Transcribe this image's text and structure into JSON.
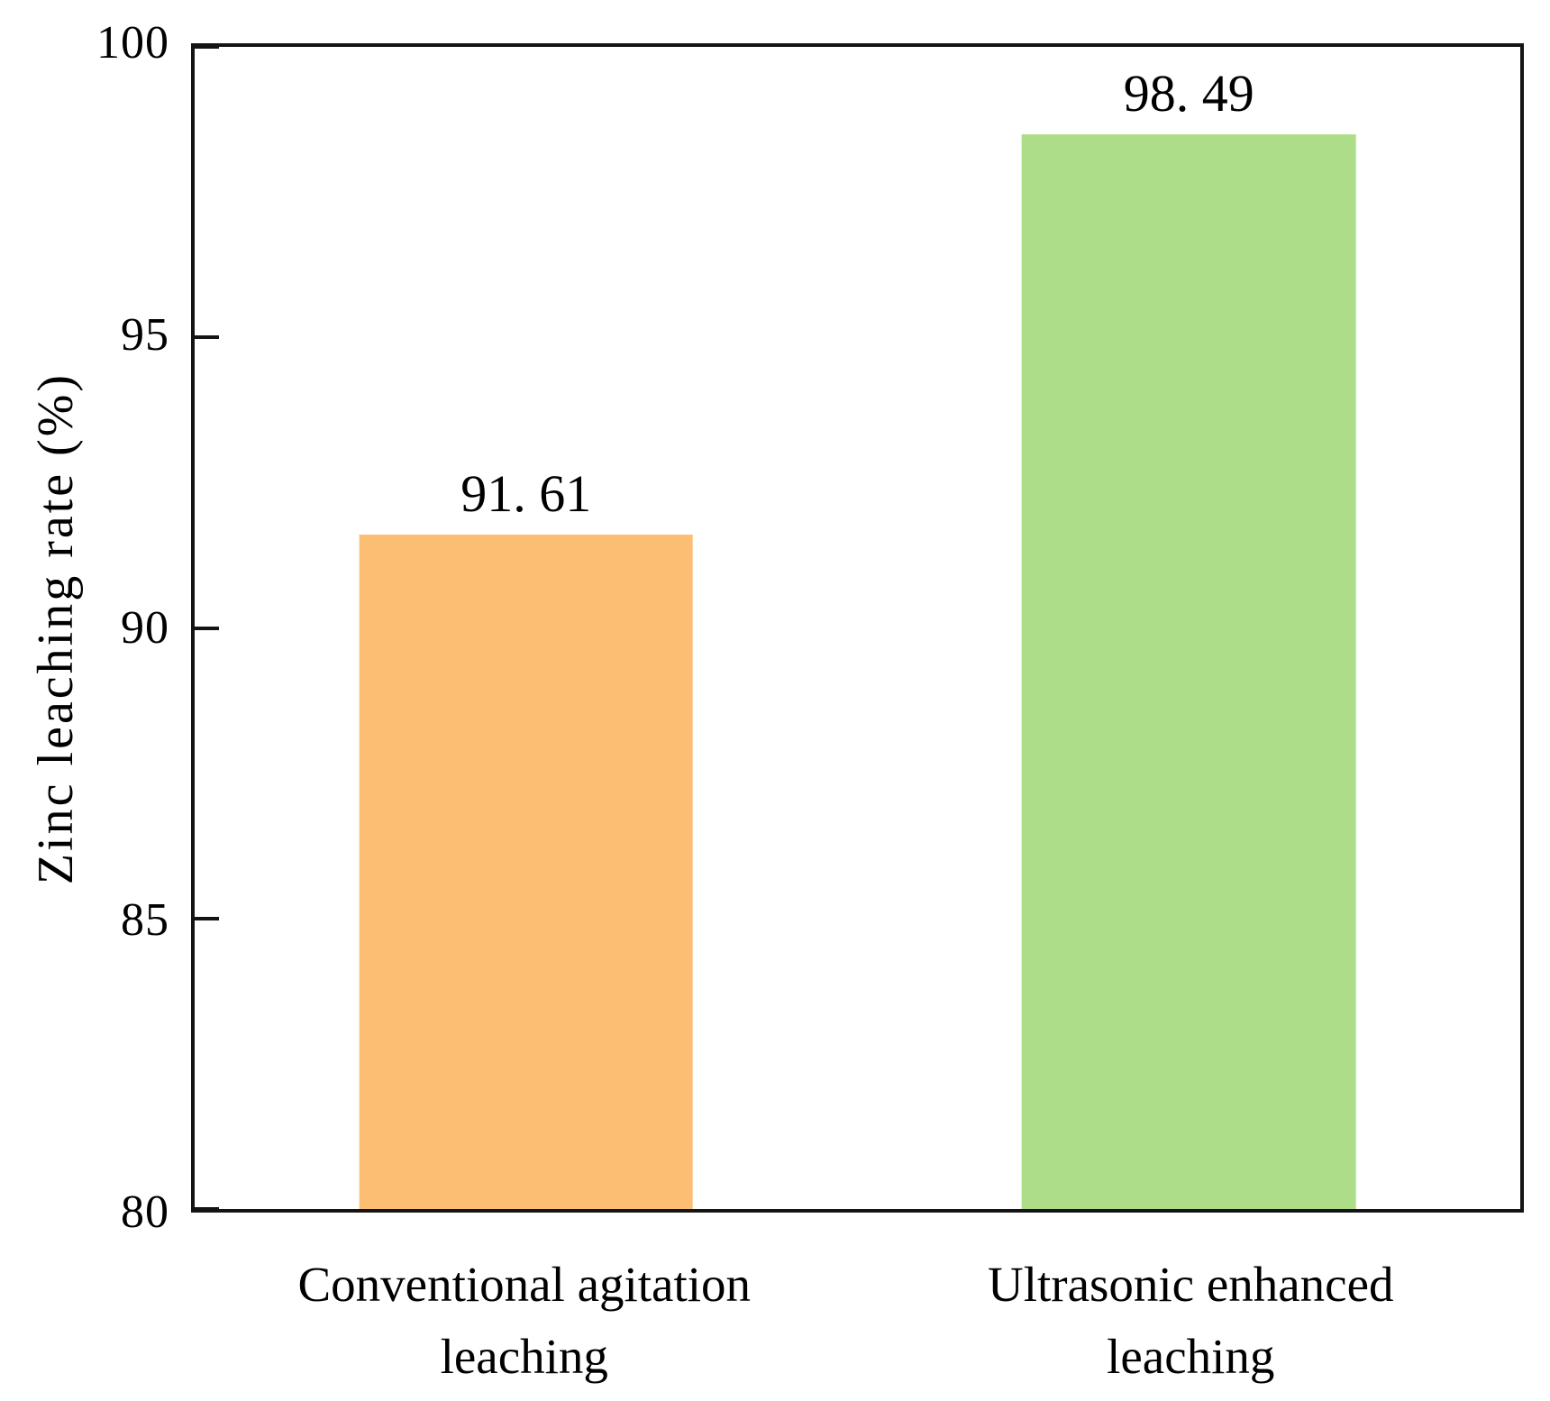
{
  "chart_data": {
    "type": "bar",
    "title": "",
    "categories": [
      "Conventional agitation leaching",
      "Ultrasonic enhanced leaching"
    ],
    "category_lines": [
      [
        "Conventional agitation",
        "leaching"
      ],
      [
        "Ultrasonic enhanced",
        "leaching"
      ]
    ],
    "values": [
      91.61,
      98.49
    ],
    "value_labels": [
      "91. 61",
      "98. 49"
    ],
    "bar_colors": [
      "#FBBE72",
      "#AEDD89"
    ],
    "xlabel": "",
    "ylabel": "Zinc leaching rate (%)",
    "ylim": [
      80,
      100
    ],
    "yticks": [
      80,
      85,
      90,
      95,
      100
    ],
    "grid": false,
    "legend": null,
    "axis_color": "#141414",
    "text_color": "#000000"
  }
}
